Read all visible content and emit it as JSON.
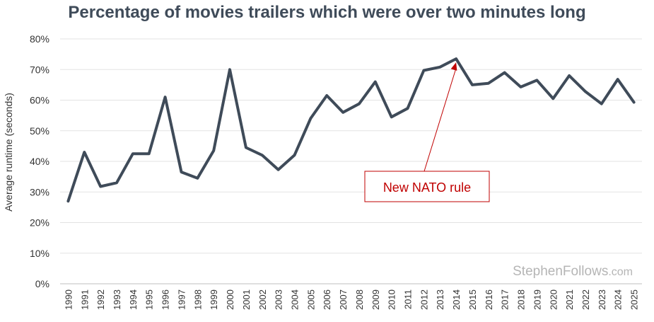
{
  "chart_data": {
    "type": "line",
    "title": "Percentage of movies trailers which were over two minutes long",
    "ylabel": "Average runtime (seconds)",
    "xlabel": "",
    "ylim": [
      0,
      80
    ],
    "yticks": [
      0,
      10,
      20,
      30,
      40,
      50,
      60,
      70,
      80
    ],
    "ytick_labels": [
      "0%",
      "10%",
      "20%",
      "30%",
      "40%",
      "50%",
      "60%",
      "70%",
      "80%"
    ],
    "grid": true,
    "x": [
      "1990",
      "1991",
      "1992",
      "1993",
      "1994",
      "1995",
      "1996",
      "1997",
      "1998",
      "1999",
      "2000",
      "2001",
      "2002",
      "2003",
      "2004",
      "2005",
      "2006",
      "2007",
      "2008",
      "2009",
      "2010",
      "2011",
      "2012",
      "2013",
      "2014",
      "2015",
      "2016",
      "2017",
      "2018",
      "2019",
      "2020",
      "2021",
      "2022",
      "2023",
      "2024",
      "2025"
    ],
    "series": [
      {
        "values": [
          27,
          43,
          31.8,
          33,
          42.5,
          42.5,
          61,
          36.5,
          34.5,
          43.5,
          70,
          44.5,
          42,
          37.3,
          42,
          54,
          61.5,
          56,
          58.8,
          66,
          54.5,
          57.3,
          69.7,
          70.8,
          73.5,
          65,
          65.5,
          69,
          64.3,
          66.5,
          60.5,
          68,
          62.8,
          58.8,
          66.8,
          59.3
        ],
        "color": "#3f4b59"
      }
    ],
    "annotation": {
      "text": "New NATO rule",
      "target_x": "2014",
      "target_y": 73.5,
      "color": "#c00000"
    },
    "watermark": {
      "main": "StephenFollows",
      "suffix": ".com"
    }
  }
}
